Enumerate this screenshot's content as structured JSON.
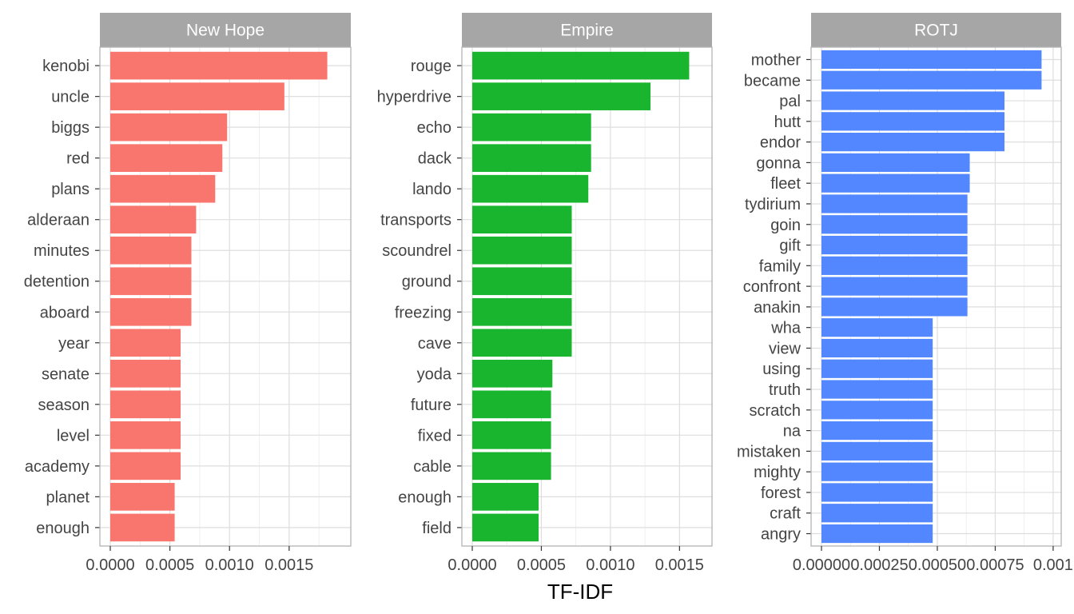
{
  "chart_data": {
    "type": "bar",
    "orientation": "horizontal",
    "xlabel": "TF-IDF",
    "ylabel": "",
    "title": "",
    "grid": true,
    "legend": "none",
    "panels": [
      {
        "name": "New Hope",
        "color": "#F8766D",
        "xlim": [
          0,
          0.00193
        ],
        "ticks": [
          0,
          0.0005,
          0.001,
          0.0015
        ],
        "tick_labels": [
          "0.0000",
          "0.0005",
          "0.0010",
          "0.0015"
        ],
        "categories": [
          "kenobi",
          "uncle",
          "biggs",
          "red",
          "plans",
          "alderaan",
          "minutes",
          "detention",
          "aboard",
          "year",
          "senate",
          "season",
          "level",
          "academy",
          "planet",
          "enough"
        ],
        "values": [
          0.00182,
          0.00146,
          0.00098,
          0.00094,
          0.00088,
          0.00072,
          0.00068,
          0.00068,
          0.00068,
          0.00059,
          0.00059,
          0.00059,
          0.00059,
          0.00059,
          0.00054,
          0.00054
        ]
      },
      {
        "name": "Empire",
        "color": "#1AB52F",
        "xlim": [
          0,
          0.00166
        ],
        "ticks": [
          0,
          0.0005,
          0.001,
          0.0015
        ],
        "tick_labels": [
          "0.0000",
          "0.0005",
          "0.0010",
          "0.0015"
        ],
        "categories": [
          "rouge",
          "hyperdrive",
          "echo",
          "dack",
          "lando",
          "transports",
          "scoundrel",
          "ground",
          "freezing",
          "cave",
          "yoda",
          "future",
          "fixed",
          "cable",
          "enough",
          "field"
        ],
        "values": [
          0.00157,
          0.00129,
          0.00086,
          0.00086,
          0.00084,
          0.00072,
          0.00072,
          0.00072,
          0.00072,
          0.00072,
          0.00058,
          0.00057,
          0.00057,
          0.00057,
          0.00048,
          0.00048
        ]
      },
      {
        "name": "ROTJ",
        "color": "#5287FF",
        "xlim": [
          0,
          0.00099
        ],
        "ticks": [
          0,
          0.00025,
          0.0005,
          0.00075,
          0.001
        ],
        "tick_labels": [
          "0.00000",
          "0.00025",
          "0.00050",
          "0.00075",
          "0.001"
        ],
        "categories": [
          "mother",
          "became",
          "pal",
          "hutt",
          "endor",
          "gonna",
          "fleet",
          "tydirium",
          "goin",
          "gift",
          "family",
          "confront",
          "anakin",
          "wha",
          "view",
          "using",
          "truth",
          "scratch",
          "na",
          "mistaken",
          "mighty",
          "forest",
          "craft",
          "angry"
        ],
        "values": [
          0.00095,
          0.00095,
          0.00079,
          0.00079,
          0.00079,
          0.00064,
          0.00064,
          0.00063,
          0.00063,
          0.00063,
          0.00063,
          0.00063,
          0.00063,
          0.00048,
          0.00048,
          0.00048,
          0.00048,
          0.00048,
          0.00048,
          0.00048,
          0.00048,
          0.00048,
          0.00048,
          0.00048
        ]
      }
    ]
  }
}
